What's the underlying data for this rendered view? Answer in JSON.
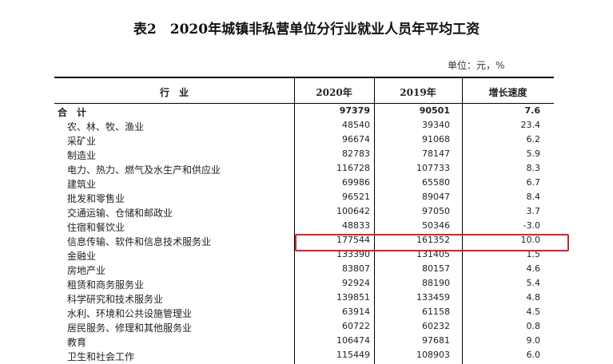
{
  "title": "表2　2020年城镇非私营单位分行业就业人员年平均工资",
  "unit": "单位：元，%",
  "headers": {
    "industry": "行　业",
    "y2020": "2020年",
    "y2019": "2019年",
    "growth": "增长速度"
  },
  "rows": [
    {
      "name": "合　计",
      "y2020": "97379",
      "y2019": "90501",
      "growth": "7.6",
      "total": true
    },
    {
      "name": "农、林、牧、渔业",
      "y2020": "48540",
      "y2019": "39340",
      "growth": "23.4"
    },
    {
      "name": "采矿业",
      "y2020": "96674",
      "y2019": "91068",
      "growth": "6.2"
    },
    {
      "name": "制造业",
      "y2020": "82783",
      "y2019": "78147",
      "growth": "5.9"
    },
    {
      "name": "电力、热力、燃气及水生产和供应业",
      "y2020": "116728",
      "y2019": "107733",
      "growth": "8.3"
    },
    {
      "name": "建筑业",
      "y2020": "69986",
      "y2019": "65580",
      "growth": "6.7"
    },
    {
      "name": "批发和零售业",
      "y2020": "96521",
      "y2019": "89047",
      "growth": "8.4"
    },
    {
      "name": "交通运输、仓储和邮政业",
      "y2020": "100642",
      "y2019": "97050",
      "growth": "3.7"
    },
    {
      "name": "住宿和餐饮业",
      "y2020": "48833",
      "y2019": "50346",
      "growth": "-3.0"
    },
    {
      "name": "信息传输、软件和信息技术服务业",
      "y2020": "177544",
      "y2019": "161352",
      "growth": "10.0",
      "highlighted": true
    },
    {
      "name": "金融业",
      "y2020": "133390",
      "y2019": "131405",
      "growth": "1.5"
    },
    {
      "name": "房地产业",
      "y2020": "83807",
      "y2019": "80157",
      "growth": "4.6"
    },
    {
      "name": "租赁和商务服务业",
      "y2020": "92924",
      "y2019": "88190",
      "growth": "5.4"
    },
    {
      "name": "科学研究和技术服务业",
      "y2020": "139851",
      "y2019": "133459",
      "growth": "4.8"
    },
    {
      "name": "水利、环境和公共设施管理业",
      "y2020": "63914",
      "y2019": "61158",
      "growth": "4.5"
    },
    {
      "name": "居民服务、修理和其他服务业",
      "y2020": "60722",
      "y2019": "60232",
      "growth": "0.8"
    },
    {
      "name": "教育",
      "y2020": "106474",
      "y2019": "97681",
      "growth": "9.0"
    },
    {
      "name": "卫生和社会工作",
      "y2020": "115449",
      "y2019": "108903",
      "growth": "6.0"
    }
  ],
  "colors": {
    "highlight_border": "#c8282c"
  }
}
